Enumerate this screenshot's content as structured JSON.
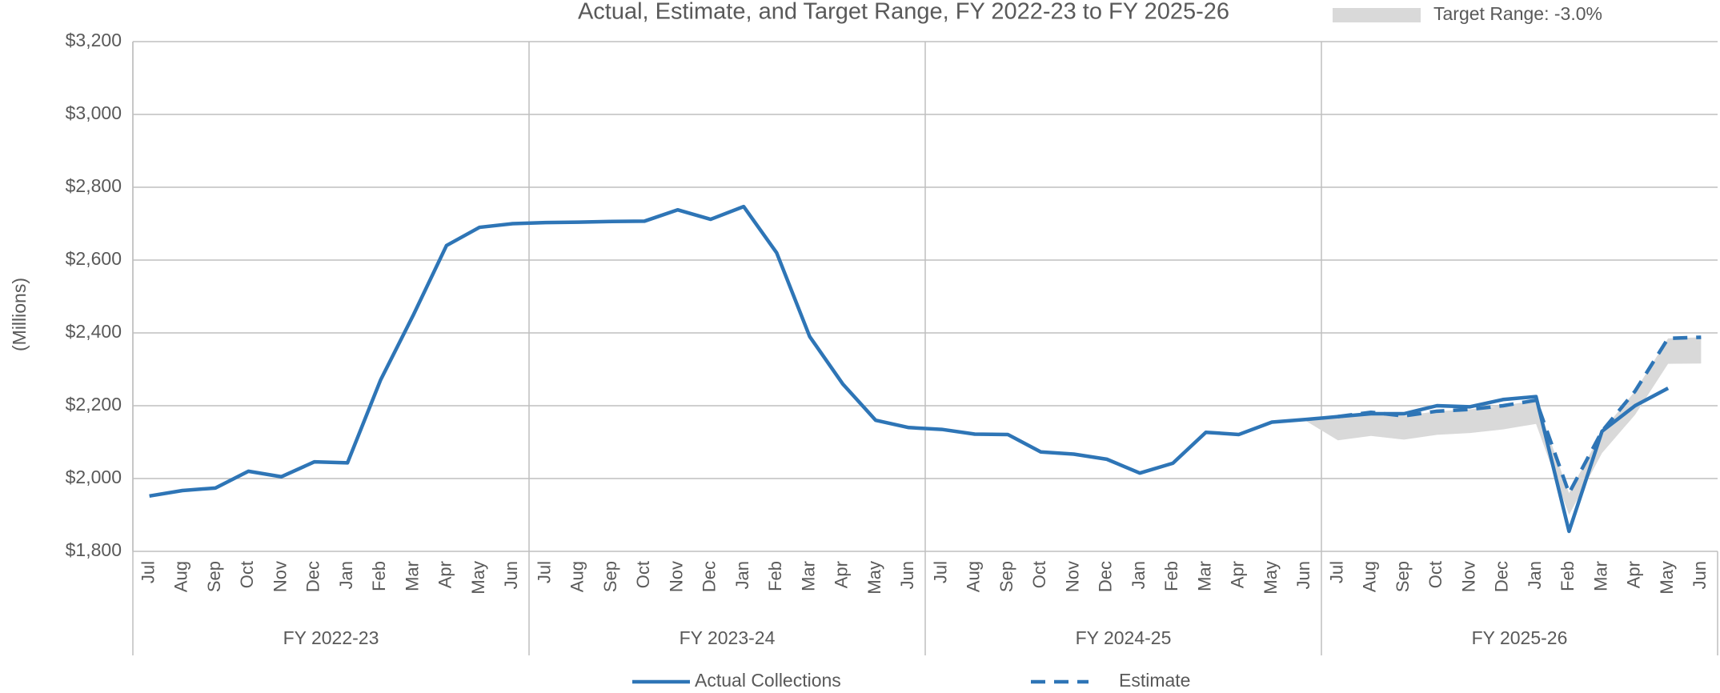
{
  "chart_data": {
    "type": "line",
    "title": "Actual, Estimate, and Target Range, FY 2022-23 to FY 2025-26",
    "y_axis_label": "(Millions)",
    "categories": [
      "Jul",
      "Aug",
      "Sep",
      "Oct",
      "Nov",
      "Dec",
      "Jan",
      "Feb",
      "Mar",
      "Apr",
      "May",
      "Jun",
      "Jul",
      "Aug",
      "Sep",
      "Oct",
      "Nov",
      "Dec",
      "Jan",
      "Feb",
      "Mar",
      "Apr",
      "May",
      "Jun",
      "Jul",
      "Aug",
      "Sep",
      "Oct",
      "Nov",
      "Dec",
      "Jan",
      "Feb",
      "Mar",
      "Apr",
      "May",
      "Jun",
      "Jul",
      "Aug",
      "Sep",
      "Oct",
      "Nov",
      "Dec",
      "Jan",
      "Feb",
      "Mar",
      "Apr",
      "May",
      "Jun"
    ],
    "groups": [
      "FY 2022-23",
      "FY 2023-24",
      "FY 2024-25",
      "FY 2025-26"
    ],
    "series": [
      {
        "name": "Actual Collections",
        "color": "#2e75b6",
        "dash": false,
        "values": [
          1952,
          1967,
          1974,
          2020,
          2005,
          2046,
          2043,
          2270,
          2450,
          2640,
          2690,
          2700,
          2703,
          2704,
          2706,
          2707,
          2738,
          2712,
          2747,
          2620,
          2390,
          2260,
          2160,
          2140,
          2135,
          2122,
          2121,
          2073,
          2067,
          2053,
          2015,
          2042,
          2127,
          2121,
          2155,
          2162,
          2170,
          2178,
          2178,
          2200,
          2197,
          2217,
          2225,
          1855,
          2130,
          2200,
          2248,
          null
        ]
      },
      {
        "name": "Estimate",
        "color": "#2e75b6",
        "dash": true,
        "values": [
          null,
          null,
          null,
          null,
          null,
          null,
          null,
          null,
          null,
          null,
          null,
          null,
          null,
          null,
          null,
          null,
          null,
          null,
          null,
          null,
          null,
          null,
          null,
          null,
          null,
          null,
          null,
          null,
          null,
          null,
          null,
          null,
          null,
          null,
          null,
          null,
          2170,
          2182,
          2172,
          2185,
          2190,
          2200,
          2215,
          1960,
          2130,
          2240,
          2385,
          2388
        ]
      }
    ],
    "band": {
      "name": "Target Range: -3.0%",
      "color": "#d9d9d9",
      "upper": [
        null,
        null,
        null,
        null,
        null,
        null,
        null,
        null,
        null,
        null,
        null,
        null,
        null,
        null,
        null,
        null,
        null,
        null,
        null,
        null,
        null,
        null,
        null,
        null,
        null,
        null,
        null,
        null,
        null,
        null,
        null,
        null,
        null,
        null,
        null,
        2162,
        2170,
        2182,
        2172,
        2185,
        2190,
        2200,
        2215,
        1960,
        2130,
        2240,
        2385,
        2388
      ],
      "lower": [
        null,
        null,
        null,
        null,
        null,
        null,
        null,
        null,
        null,
        null,
        null,
        null,
        null,
        null,
        null,
        null,
        null,
        null,
        null,
        null,
        null,
        null,
        null,
        null,
        null,
        null,
        null,
        null,
        null,
        null,
        null,
        null,
        null,
        null,
        null,
        2160,
        2105,
        2117,
        2107,
        2120,
        2125,
        2135,
        2150,
        1900,
        2070,
        2175,
        2315,
        2316
      ]
    },
    "ylim": [
      1800,
      3200
    ],
    "yticks": [
      {
        "value": 1800,
        "label": "$1,800"
      },
      {
        "value": 2000,
        "label": "$2,000"
      },
      {
        "value": 2200,
        "label": "$2,200"
      },
      {
        "value": 2400,
        "label": "$2,400"
      },
      {
        "value": 2600,
        "label": "$2,600"
      },
      {
        "value": 2800,
        "label": "$2,800"
      },
      {
        "value": 3000,
        "label": "$3,000"
      },
      {
        "value": 3200,
        "label": "$3,200"
      }
    ],
    "grid": true
  }
}
